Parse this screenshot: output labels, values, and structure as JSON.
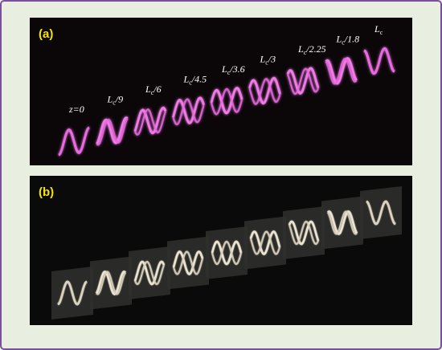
{
  "panel_a": {
    "label": "(a)",
    "frames": [
      {
        "label": "z=0"
      },
      {
        "symbol": "L",
        "subscript": "c",
        "suffix": "/9"
      },
      {
        "symbol": "L",
        "subscript": "c",
        "suffix": "/6"
      },
      {
        "symbol": "L",
        "subscript": "c",
        "suffix": "/4.5"
      },
      {
        "symbol": "L",
        "subscript": "c",
        "suffix": "/3.6"
      },
      {
        "symbol": "L",
        "subscript": "c",
        "suffix": "/3"
      },
      {
        "symbol": "L",
        "subscript": "c",
        "suffix": "/2.25"
      },
      {
        "symbol": "L",
        "subscript": "c",
        "suffix": "/1.8"
      },
      {
        "symbol": "L",
        "subscript": "c"
      }
    ]
  },
  "panel_b": {
    "label": "(b)"
  }
}
